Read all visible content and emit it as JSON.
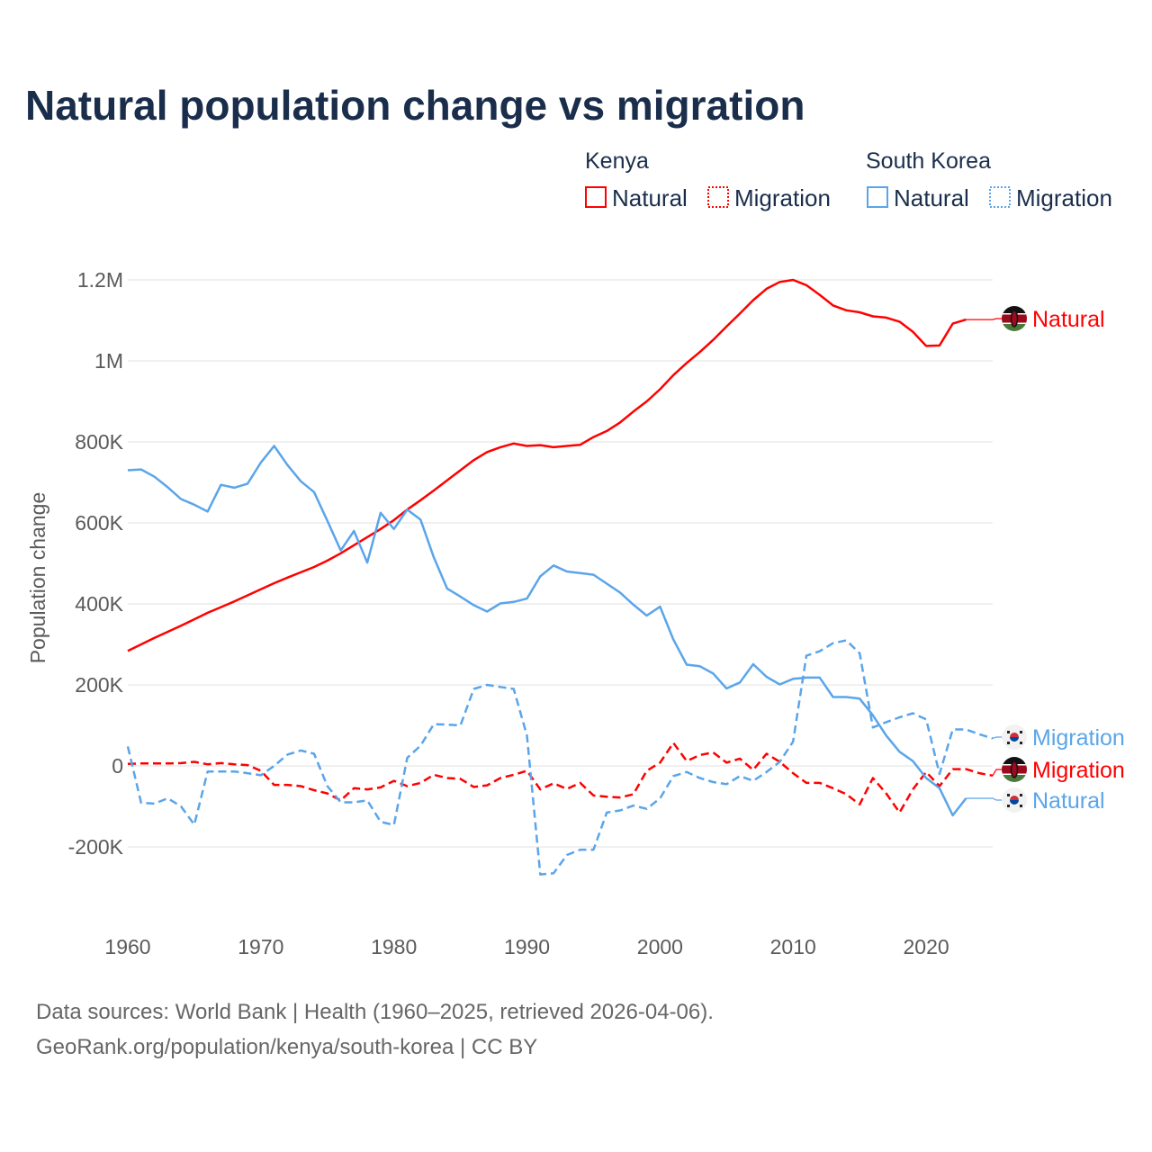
{
  "chart_data": {
    "type": "line",
    "title": "Natural population change vs migration",
    "xlabel": "",
    "ylabel": "Population change",
    "xlim": [
      1960,
      2025
    ],
    "ylim": [
      -300000,
      1250000
    ],
    "x_ticks": [
      1960,
      1970,
      1980,
      1990,
      2000,
      2010,
      2020
    ],
    "x_tick_labels": [
      "1960",
      "1970",
      "1980",
      "1990",
      "2000",
      "2010",
      "2020"
    ],
    "y_ticks": [
      -200000,
      0,
      200000,
      400000,
      600000,
      800000,
      1000000,
      1200000
    ],
    "y_tick_labels": [
      "-200K",
      "0",
      "200K",
      "400K",
      "600K",
      "800K",
      "1M",
      "1.2M"
    ],
    "grid": true,
    "legend": {
      "placement": "top-right",
      "groups": [
        {
          "name": "Kenya",
          "items": [
            "Natural",
            "Migration"
          ]
        },
        {
          "name": "South Korea",
          "items": [
            "Natural",
            "Migration"
          ]
        }
      ]
    },
    "series": [
      {
        "name": "Kenya Natural",
        "country": "Kenya",
        "kind": "Natural",
        "label": "Natural",
        "color": "#ff0000",
        "dashed": false,
        "start": 1960,
        "values": [
          284000,
          300000,
          316000,
          331000,
          346000,
          362000,
          378000,
          392000,
          406000,
          421000,
          436000,
          451000,
          465000,
          478000,
          491000,
          507000,
          525000,
          545000,
          565000,
          585000,
          607000,
          633000,
          656000,
          680000,
          705000,
          730000,
          755000,
          775000,
          787000,
          796000,
          790000,
          792000,
          787000,
          790000,
          793000,
          812000,
          827000,
          848000,
          875000,
          900000,
          930000,
          965000,
          995000,
          1022000,
          1052000,
          1085000,
          1117000,
          1150000,
          1178000,
          1195000,
          1200000,
          1187000,
          1163000,
          1137000,
          1125000,
          1120000,
          1110000,
          1107000,
          1097000,
          1072000,
          1037000,
          1038000,
          1092000,
          1102000
        ]
      },
      {
        "name": "Kenya Migration",
        "country": "Kenya",
        "kind": "Migration",
        "label": "Migration",
        "color": "#ff0000",
        "dashed": true,
        "start": 1960,
        "values": [
          5000,
          6000,
          6000,
          6000,
          7000,
          10000,
          4000,
          7000,
          4000,
          2000,
          -12000,
          -47000,
          -47000,
          -50000,
          -60000,
          -68000,
          -85000,
          -55000,
          -58000,
          -53000,
          -37000,
          -50000,
          -42000,
          -22000,
          -30000,
          -32000,
          -52000,
          -48000,
          -30000,
          -22000,
          -12000,
          -58000,
          -43000,
          -57000,
          -42000,
          -73000,
          -76000,
          -78000,
          -70000,
          -12000,
          8000,
          57000,
          12000,
          27000,
          33000,
          8000,
          18000,
          -10000,
          30000,
          10000,
          -18000,
          -42000,
          -42000,
          -55000,
          -70000,
          -95000,
          -30000,
          -68000,
          -115000,
          -58000,
          -15000,
          -50000,
          -8000,
          -8000,
          -18000,
          -24000
        ]
      },
      {
        "name": "South Korea Natural",
        "country": "South Korea",
        "kind": "Natural",
        "label": "Natural",
        "color": "#5aa5ea",
        "dashed": false,
        "start": 1960,
        "values": [
          730000,
          732000,
          714000,
          688000,
          659000,
          645000,
          628000,
          694000,
          687000,
          697000,
          749000,
          790000,
          743000,
          703000,
          676000,
          605000,
          532000,
          580000,
          502000,
          625000,
          585000,
          633000,
          608000,
          515000,
          438000,
          418000,
          397000,
          381000,
          401000,
          405000,
          413000,
          468000,
          495000,
          480000,
          476000,
          472000,
          450000,
          428000,
          398000,
          371000,
          393000,
          312000,
          250000,
          246000,
          228000,
          191000,
          206000,
          251000,
          220000,
          201000,
          215000,
          218000,
          218000,
          170000,
          170000,
          166000,
          125000,
          75000,
          35000,
          12000,
          -30000,
          -55000,
          -122000,
          -80000
        ]
      },
      {
        "name": "South Korea Migration",
        "country": "South Korea",
        "kind": "Migration",
        "label": "Migration",
        "color": "#5aa5ea",
        "dashed": true,
        "start": 1960,
        "values": [
          48000,
          -91000,
          -93000,
          -80000,
          -100000,
          -145000,
          -14000,
          -14000,
          -14000,
          -18000,
          -23000,
          0,
          28000,
          38000,
          30000,
          -50000,
          -90000,
          -90000,
          -85000,
          -138000,
          -146000,
          20000,
          50000,
          103000,
          102000,
          100000,
          190000,
          200000,
          195000,
          190000,
          75000,
          -268000,
          -265000,
          -220000,
          -207000,
          -207000,
          -115000,
          -110000,
          -98000,
          -106000,
          -80000,
          -25000,
          -15000,
          -30000,
          -40000,
          -45000,
          -25000,
          -37000,
          -15000,
          10000,
          60000,
          272000,
          283000,
          303000,
          310000,
          278000,
          95000,
          108000,
          120000,
          130000,
          115000,
          -20000,
          90000,
          90000,
          78000,
          68000
        ]
      }
    ]
  },
  "source": {
    "line1": "Data sources: World Bank | Health (1960–2025, retrieved 2026-04-06).",
    "line2": "GeoRank.org/population/kenya/south-korea | CC BY"
  }
}
